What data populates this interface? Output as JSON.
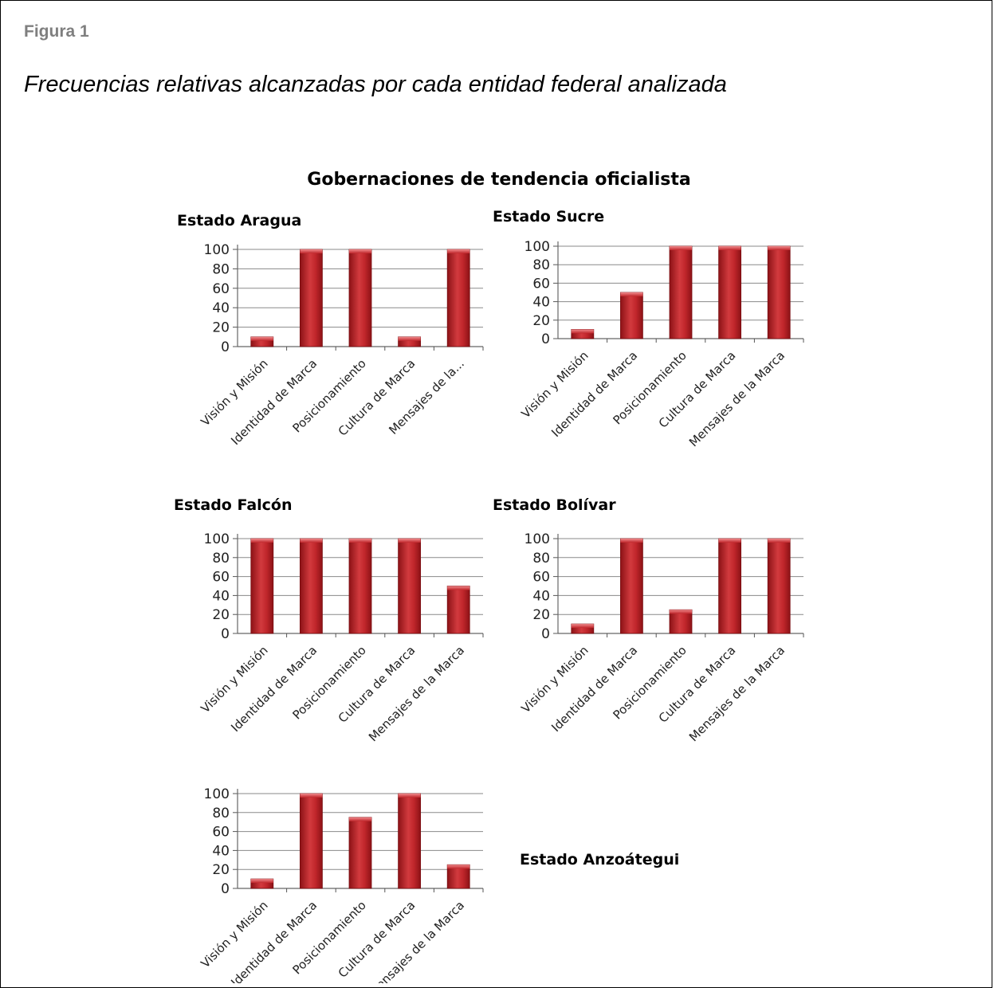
{
  "figure_label": "Figura 1",
  "caption": "Frecuencias relativas alcanzadas por cada entidad federal analizada",
  "super_title": "Gobernaciones de tendencia oficialista",
  "colors": {
    "bar": "#c0262b",
    "bar_dark": "#8c1216",
    "bar_light": "#e26a6c",
    "grid": "#888888"
  },
  "chart_data": [
    {
      "type": "bar",
      "title": "Estado Aragua",
      "categories": [
        "Visión y Misión",
        "Identidad de Marca",
        "Posicionamiento",
        "Cultura de Marca",
        "Mensajes de la..."
      ],
      "values": [
        10,
        100,
        100,
        10,
        100
      ],
      "ylim": [
        0,
        100
      ],
      "yticks": [
        0,
        20,
        40,
        60,
        80,
        100
      ],
      "grid": true,
      "xlabel": "",
      "ylabel": ""
    },
    {
      "type": "bar",
      "title": "Estado  Sucre",
      "categories": [
        "Visión y Misión",
        "Identidad de Marca",
        "Posicionamiento",
        "Cultura de Marca",
        "Mensajes de la Marca"
      ],
      "values": [
        10,
        50,
        100,
        100,
        100
      ],
      "ylim": [
        0,
        100
      ],
      "yticks": [
        0,
        20,
        40,
        60,
        80,
        100
      ],
      "grid": true,
      "xlabel": "",
      "ylabel": ""
    },
    {
      "type": "bar",
      "title": "Estado Falcón",
      "categories": [
        "Visión y Misión",
        "Identidad de Marca",
        "Posicionamiento",
        "Cultura de Marca",
        "Mensajes de la Marca"
      ],
      "values": [
        100,
        100,
        100,
        100,
        50
      ],
      "ylim": [
        0,
        100
      ],
      "yticks": [
        0,
        20,
        40,
        60,
        80,
        100
      ],
      "grid": true,
      "xlabel": "",
      "ylabel": ""
    },
    {
      "type": "bar",
      "title": "Estado Bolívar",
      "categories": [
        "Visión y Misión",
        "Identidad de Marca",
        "Posicionamiento",
        "Cultura de Marca",
        "Mensajes de la Marca"
      ],
      "values": [
        10,
        100,
        25,
        100,
        100
      ],
      "ylim": [
        0,
        100
      ],
      "yticks": [
        0,
        20,
        40,
        60,
        80,
        100
      ],
      "grid": true,
      "xlabel": "",
      "ylabel": ""
    },
    {
      "type": "bar",
      "title": "Estado Anzoátegui",
      "categories": [
        "Visión y Misión",
        "Identidad de Marca",
        "Posicionamiento",
        "Cultura de Marca",
        "Mensajes de la Marca"
      ],
      "values": [
        10,
        100,
        75,
        100,
        25
      ],
      "ylim": [
        0,
        100
      ],
      "yticks": [
        0,
        20,
        40,
        60,
        80,
        100
      ],
      "grid": true,
      "xlabel": "",
      "ylabel": ""
    }
  ]
}
